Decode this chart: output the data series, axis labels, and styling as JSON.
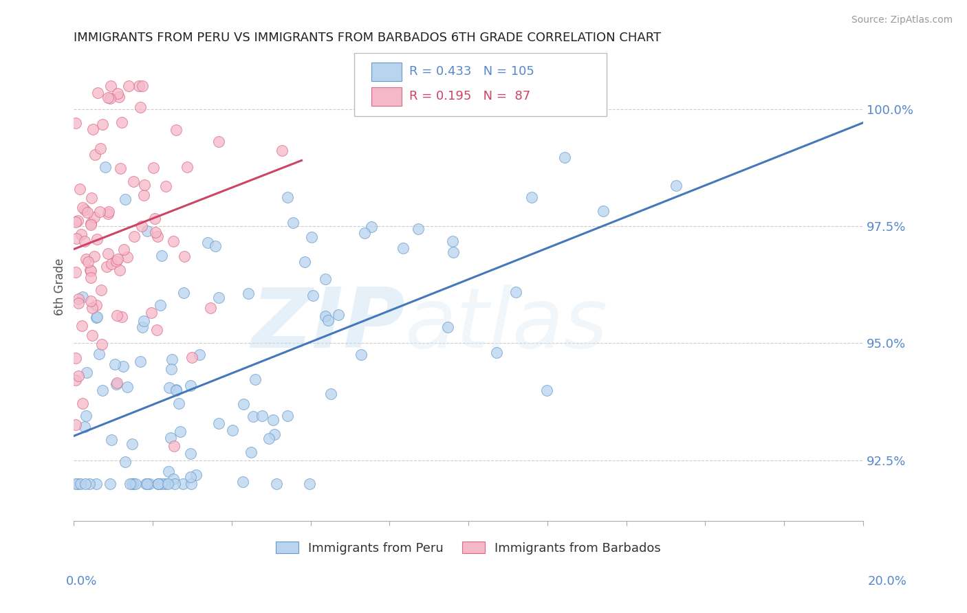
{
  "title": "IMMIGRANTS FROM PERU VS IMMIGRANTS FROM BARBADOS 6TH GRADE CORRELATION CHART",
  "source": "Source: ZipAtlas.com",
  "ylabel": "6th Grade",
  "right_yticks": [
    92.5,
    95.0,
    97.5,
    100.0
  ],
  "right_ytick_labels": [
    "92.5%",
    "95.0%",
    "97.5%",
    "100.0%"
  ],
  "blue_R": 0.433,
  "blue_N": 105,
  "pink_R": 0.195,
  "pink_N": 87,
  "blue_color": "#b8d4ee",
  "pink_color": "#f5b8c8",
  "blue_edge_color": "#6699cc",
  "pink_edge_color": "#dd6688",
  "blue_line_color": "#4477bb",
  "pink_line_color": "#cc4466",
  "legend_blue_text": "Immigrants from Peru",
  "legend_pink_text": "Immigrants from Barbados",
  "watermark_zip": "ZIP",
  "watermark_atlas": "atlas",
  "title_color": "#222222",
  "axis_color": "#5588cc",
  "background_color": "#ffffff",
  "xlim": [
    0.0,
    20.0
  ],
  "ylim": [
    91.2,
    101.2
  ],
  "seed": 7
}
